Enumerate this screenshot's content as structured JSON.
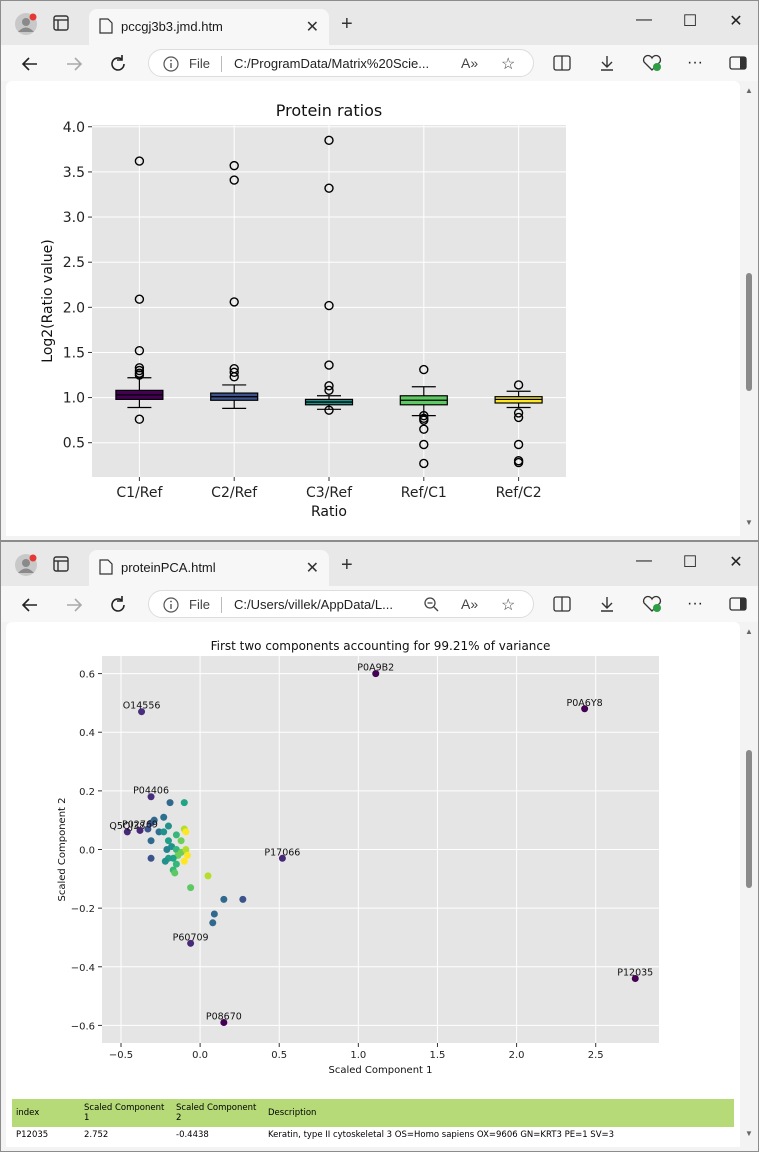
{
  "window1": {
    "tab_title": "pccgj3b3.jmd.htm",
    "address_scheme": "File",
    "address_url": "C:/ProgramData/Matrix%20Scie...",
    "chart": {
      "title": "Protein ratios",
      "xlabel": "Ratio",
      "ylabel": "Log2(Ratio value)",
      "yticks": [
        "0.5",
        "1.0",
        "1.5",
        "2.0",
        "2.5",
        "3.0",
        "3.5",
        "4.0"
      ],
      "categories": [
        "C1/Ref",
        "C2/Ref",
        "C3/Ref",
        "Ref/C1",
        "Ref/C2"
      ]
    }
  },
  "window2": {
    "tab_title": "proteinPCA.html",
    "address_scheme": "File",
    "address_url": "C:/Users/villek/AppData/L...",
    "chart": {
      "title": "First two components accounting for 99.21% of variance",
      "xlabel": "Scaled Component 1",
      "ylabel": "Scaled Component 2",
      "xticks": [
        "−0.5",
        "0.0",
        "0.5",
        "1.0",
        "1.5",
        "2.0",
        "2.5"
      ],
      "yticks": [
        "−0.6",
        "−0.4",
        "−0.2",
        "0.0",
        "0.2",
        "0.4",
        "0.6"
      ]
    },
    "table": {
      "headers": [
        "index",
        "Scaled Component 1",
        "Scaled Component 2",
        "Description"
      ],
      "rows": [
        [
          "P12035",
          "2.752",
          "-0.4438",
          "Keratin, type II cytoskeletal 3 OS=Homo sapiens OX=9606 GN=KRT3 PE=1 SV=3"
        ]
      ]
    }
  },
  "chart_data": [
    {
      "type": "box",
      "title": "Protein ratios",
      "xlabel": "Ratio",
      "ylabel": "Log2(Ratio value)",
      "ylim": [
        0.12,
        4.02
      ],
      "grid": true,
      "series": [
        {
          "category": "C1/Ref",
          "color": "#440154",
          "q1": 0.98,
          "median": 1.03,
          "q3": 1.08,
          "whisker_low": 0.89,
          "whisker_high": 1.22,
          "outliers": [
            3.62,
            2.09,
            1.52,
            1.33,
            1.3,
            1.27,
            1.25,
            0.76
          ]
        },
        {
          "category": "C2/Ref",
          "color": "#3b528b",
          "q1": 0.97,
          "median": 1.01,
          "q3": 1.05,
          "whisker_low": 0.88,
          "whisker_high": 1.14,
          "outliers": [
            3.57,
            3.41,
            2.06,
            1.32,
            1.28,
            1.23
          ]
        },
        {
          "category": "C3/Ref",
          "color": "#21918c",
          "q1": 0.92,
          "median": 0.95,
          "q3": 0.98,
          "whisker_low": 0.87,
          "whisker_high": 1.02,
          "outliers": [
            3.85,
            3.32,
            2.02,
            1.36,
            1.13,
            1.08,
            0.86
          ]
        },
        {
          "category": "Ref/C1",
          "color": "#5ec962",
          "q1": 0.92,
          "median": 0.97,
          "q3": 1.02,
          "whisker_low": 0.8,
          "whisker_high": 1.12,
          "outliers": [
            1.31,
            0.8,
            0.77,
            0.75,
            0.65,
            0.48,
            0.27
          ]
        },
        {
          "category": "Ref/C2",
          "color": "#fde725",
          "q1": 0.94,
          "median": 0.98,
          "q3": 1.01,
          "whisker_low": 0.89,
          "whisker_high": 1.07,
          "outliers": [
            1.14,
            0.83,
            0.78,
            0.48,
            0.3,
            0.28
          ]
        }
      ]
    },
    {
      "type": "scatter",
      "title": "First two components accounting for 99.21% of variance",
      "xlabel": "Scaled Component 1",
      "ylabel": "Scaled Component 2",
      "xlim": [
        -0.62,
        2.9
      ],
      "ylim": [
        -0.66,
        0.66
      ],
      "grid": true,
      "labeled_points": [
        {
          "label": "P0A9B2",
          "x": 1.11,
          "y": 0.6,
          "color": "#440154"
        },
        {
          "label": "P0A6Y8",
          "x": 2.43,
          "y": 0.48,
          "color": "#440154"
        },
        {
          "label": "O14556",
          "x": -0.37,
          "y": 0.47,
          "color": "#472d7b"
        },
        {
          "label": "P04406",
          "x": -0.31,
          "y": 0.18,
          "color": "#472d7b"
        },
        {
          "label": "Q5QJ38",
          "x": -0.46,
          "y": 0.06,
          "color": "#482878"
        },
        {
          "label": "P02769",
          "x": -0.38,
          "y": 0.065,
          "color": "#482878"
        },
        {
          "label": "P17066",
          "x": 0.52,
          "y": -0.03,
          "color": "#482878"
        },
        {
          "label": "P60709",
          "x": -0.06,
          "y": -0.32,
          "color": "#482878"
        },
        {
          "label": "P12035",
          "x": 2.75,
          "y": -0.44,
          "color": "#440154"
        },
        {
          "label": "P08670",
          "x": 0.15,
          "y": -0.59,
          "color": "#440154"
        }
      ],
      "points": [
        {
          "x": -0.31,
          "y": 0.09,
          "color": "#3b528b"
        },
        {
          "x": -0.29,
          "y": 0.1,
          "color": "#31688e"
        },
        {
          "x": -0.33,
          "y": 0.07,
          "color": "#3b528b"
        },
        {
          "x": -0.26,
          "y": 0.06,
          "color": "#2c728e"
        },
        {
          "x": -0.31,
          "y": 0.03,
          "color": "#31688e"
        },
        {
          "x": -0.23,
          "y": 0.11,
          "color": "#2c728e"
        },
        {
          "x": -0.19,
          "y": 0.16,
          "color": "#31688e"
        },
        {
          "x": -0.1,
          "y": 0.16,
          "color": "#20a486"
        },
        {
          "x": -0.31,
          "y": -0.03,
          "color": "#3b528b"
        },
        {
          "x": -0.2,
          "y": 0.08,
          "color": "#21918c"
        },
        {
          "x": -0.23,
          "y": 0.06,
          "color": "#21918c"
        },
        {
          "x": -0.15,
          "y": 0.05,
          "color": "#35b779"
        },
        {
          "x": -0.1,
          "y": 0.07,
          "color": "#b5de2b"
        },
        {
          "x": -0.09,
          "y": 0.06,
          "color": "#fde725"
        },
        {
          "x": -0.12,
          "y": 0.03,
          "color": "#6ece58"
        },
        {
          "x": -0.2,
          "y": 0.03,
          "color": "#1f9e89"
        },
        {
          "x": -0.18,
          "y": 0.01,
          "color": "#21918c"
        },
        {
          "x": -0.21,
          "y": 0.0,
          "color": "#26828e"
        },
        {
          "x": -0.15,
          "y": 0.0,
          "color": "#35b779"
        },
        {
          "x": -0.12,
          "y": -0.01,
          "color": "#6ece58"
        },
        {
          "x": -0.09,
          "y": 0.0,
          "color": "#b5de2b"
        },
        {
          "x": -0.08,
          "y": -0.02,
          "color": "#fde725"
        },
        {
          "x": -0.1,
          "y": -0.04,
          "color": "#fde725"
        },
        {
          "x": -0.14,
          "y": -0.02,
          "color": "#6ece58"
        },
        {
          "x": -0.17,
          "y": -0.03,
          "color": "#20a486"
        },
        {
          "x": -0.2,
          "y": -0.03,
          "color": "#1f9e89"
        },
        {
          "x": -0.22,
          "y": -0.04,
          "color": "#21918c"
        },
        {
          "x": -0.15,
          "y": -0.05,
          "color": "#35b779"
        },
        {
          "x": -0.17,
          "y": -0.07,
          "color": "#35b779"
        },
        {
          "x": -0.16,
          "y": -0.08,
          "color": "#5ec962"
        },
        {
          "x": 0.05,
          "y": -0.09,
          "color": "#b5de2b"
        },
        {
          "x": -0.06,
          "y": -0.13,
          "color": "#5ec962"
        },
        {
          "x": 0.15,
          "y": -0.17,
          "color": "#31688e"
        },
        {
          "x": 0.27,
          "y": -0.17,
          "color": "#3b528b"
        },
        {
          "x": 0.09,
          "y": -0.22,
          "color": "#31688e"
        },
        {
          "x": 0.08,
          "y": -0.25,
          "color": "#31688e"
        }
      ]
    }
  ]
}
